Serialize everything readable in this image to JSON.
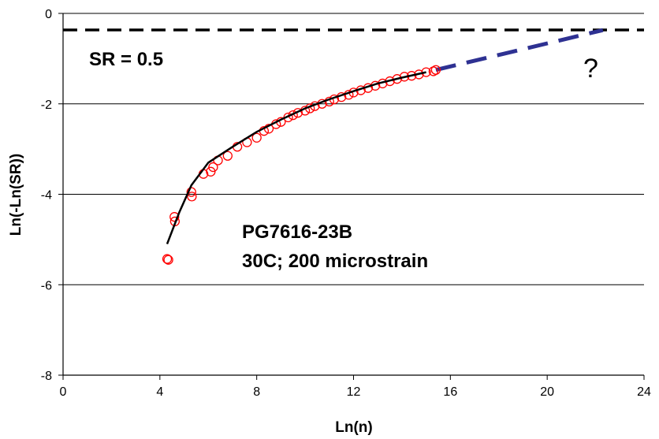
{
  "chart_data": {
    "type": "scatter",
    "xlabel": "Ln(n)",
    "ylabel": "Ln(-Ln(SR))",
    "xlim": [
      0,
      24
    ],
    "ylim": [
      -8,
      0
    ],
    "x_ticks": [
      "0",
      "4",
      "8",
      "12",
      "16",
      "20",
      "24"
    ],
    "y_ticks": [
      "0",
      "-2",
      "-4",
      "-6",
      "-8"
    ],
    "grid": "horizontal",
    "reference_line": {
      "label": "SR = 0.5",
      "y": -0.367,
      "style": "black dashed"
    },
    "extrapolation": {
      "label": "?",
      "style": "blue dashed",
      "points": [
        [
          15.4,
          -1.25
        ],
        [
          22.3,
          -0.37
        ]
      ]
    },
    "fit_curve": {
      "style": "black solid",
      "points": [
        [
          4.3,
          -5.1
        ],
        [
          4.8,
          -4.4
        ],
        [
          5.3,
          -3.8
        ],
        [
          6.0,
          -3.3
        ],
        [
          7.0,
          -2.95
        ],
        [
          8.0,
          -2.62
        ],
        [
          9.0,
          -2.35
        ],
        [
          10.0,
          -2.1
        ],
        [
          11.0,
          -1.9
        ],
        [
          12.0,
          -1.72
        ],
        [
          13.0,
          -1.55
        ],
        [
          14.0,
          -1.42
        ],
        [
          15.0,
          -1.3
        ]
      ]
    },
    "annotations": [
      "PG7616-23B",
      "30C; 200 microstrain"
    ],
    "series": [
      {
        "marker": "open circle",
        "color": "#ff0000",
        "points": [
          [
            4.3,
            -5.43
          ],
          [
            4.35,
            -5.45
          ],
          [
            4.6,
            -4.5
          ],
          [
            4.62,
            -4.6
          ],
          [
            5.3,
            -3.95
          ],
          [
            5.32,
            -4.05
          ],
          [
            5.8,
            -3.55
          ],
          [
            6.1,
            -3.5
          ],
          [
            6.2,
            -3.4
          ],
          [
            6.4,
            -3.25
          ],
          [
            6.8,
            -3.15
          ],
          [
            7.2,
            -2.95
          ],
          [
            7.6,
            -2.85
          ],
          [
            8.0,
            -2.75
          ],
          [
            8.3,
            -2.6
          ],
          [
            8.5,
            -2.55
          ],
          [
            8.8,
            -2.45
          ],
          [
            9.0,
            -2.4
          ],
          [
            9.3,
            -2.3
          ],
          [
            9.5,
            -2.25
          ],
          [
            9.7,
            -2.2
          ],
          [
            10.0,
            -2.15
          ],
          [
            10.2,
            -2.1
          ],
          [
            10.4,
            -2.05
          ],
          [
            10.7,
            -2.0
          ],
          [
            11.0,
            -1.95
          ],
          [
            11.2,
            -1.9
          ],
          [
            11.5,
            -1.85
          ],
          [
            11.8,
            -1.8
          ],
          [
            12.0,
            -1.75
          ],
          [
            12.3,
            -1.7
          ],
          [
            12.6,
            -1.65
          ],
          [
            12.9,
            -1.6
          ],
          [
            13.2,
            -1.55
          ],
          [
            13.5,
            -1.5
          ],
          [
            13.8,
            -1.45
          ],
          [
            14.1,
            -1.4
          ],
          [
            14.4,
            -1.38
          ],
          [
            14.7,
            -1.35
          ],
          [
            15.0,
            -1.3
          ],
          [
            15.3,
            -1.28
          ],
          [
            15.4,
            -1.25
          ]
        ]
      }
    ]
  }
}
